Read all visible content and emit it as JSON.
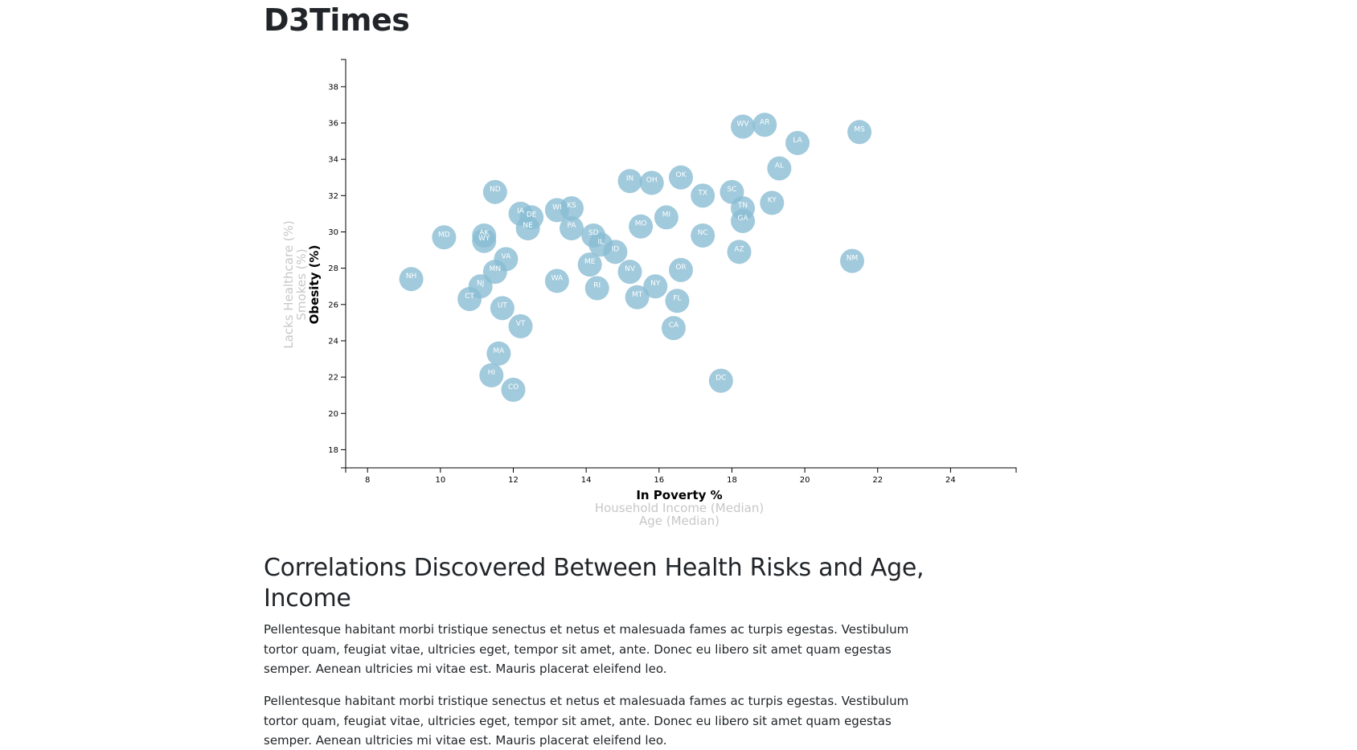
{
  "page": {
    "title": "D3Times"
  },
  "article": {
    "title": "Correlations Discovered Between Health Risks and Age, Income",
    "paragraphs": [
      "Pellentesque habitant morbi tristique senectus et netus et malesuada fames ac turpis egestas. Vestibulum tortor quam, feugiat vitae, ultricies eget, tempor sit amet, ante. Donec eu libero sit amet quam egestas semper. Aenean ultricies mi vitae est. Mauris placerat eleifend leo.",
      "Pellentesque habitant morbi tristique senectus et netus et malesuada fames ac turpis egestas. Vestibulum tortor quam, feugiat vitae, ultricies eget, tempor sit amet, ante. Donec eu libero sit amet quam egestas semper. Aenean ultricies mi vitae est. Mauris placerat eleifend leo."
    ]
  },
  "chart_data": {
    "type": "scatter",
    "x_axis_options": [
      {
        "label": "In Poverty %",
        "active": true
      },
      {
        "label": "Household Income (Median)",
        "active": false
      },
      {
        "label": "Age (Median)",
        "active": false
      }
    ],
    "y_axis_options": [
      {
        "label": "Obesity (%)",
        "active": true
      },
      {
        "label": "Smokes (%)",
        "active": false
      },
      {
        "label": "Lacks Healthcare (%)",
        "active": false
      }
    ],
    "xlim": [
      7.4,
      25.8
    ],
    "ylim": [
      17,
      39.5
    ],
    "x_ticks": [
      8,
      10,
      12,
      14,
      16,
      18,
      20,
      22,
      24
    ],
    "y_ticks": [
      18,
      20,
      22,
      24,
      26,
      28,
      30,
      32,
      34,
      36,
      38
    ],
    "marker_color": "#89bdd3",
    "label_color": "#ffffff",
    "points": [
      {
        "abbr": "NH",
        "x": 9.2,
        "y": 27.4
      },
      {
        "abbr": "MD",
        "x": 10.1,
        "y": 29.7
      },
      {
        "abbr": "CT",
        "x": 10.8,
        "y": 26.3
      },
      {
        "abbr": "NJ",
        "x": 11.1,
        "y": 27.0
      },
      {
        "abbr": "AK",
        "x": 11.2,
        "y": 29.8
      },
      {
        "abbr": "WY",
        "x": 11.2,
        "y": 29.5
      },
      {
        "abbr": "HI",
        "x": 11.4,
        "y": 22.1
      },
      {
        "abbr": "MN",
        "x": 11.5,
        "y": 27.8
      },
      {
        "abbr": "ND",
        "x": 11.5,
        "y": 32.2
      },
      {
        "abbr": "MA",
        "x": 11.6,
        "y": 23.3
      },
      {
        "abbr": "UT",
        "x": 11.7,
        "y": 25.8
      },
      {
        "abbr": "VA",
        "x": 11.8,
        "y": 28.5
      },
      {
        "abbr": "CO",
        "x": 12.0,
        "y": 21.3
      },
      {
        "abbr": "IA",
        "x": 12.2,
        "y": 31.0
      },
      {
        "abbr": "VT",
        "x": 12.2,
        "y": 24.8
      },
      {
        "abbr": "NE",
        "x": 12.4,
        "y": 30.2
      },
      {
        "abbr": "DE",
        "x": 12.5,
        "y": 30.8
      },
      {
        "abbr": "WA",
        "x": 13.2,
        "y": 27.3
      },
      {
        "abbr": "WI",
        "x": 13.2,
        "y": 31.2
      },
      {
        "abbr": "KS",
        "x": 13.6,
        "y": 31.3
      },
      {
        "abbr": "PA",
        "x": 13.6,
        "y": 30.2
      },
      {
        "abbr": "ME",
        "x": 14.1,
        "y": 28.2
      },
      {
        "abbr": "SD",
        "x": 14.2,
        "y": 29.8
      },
      {
        "abbr": "IL",
        "x": 14.4,
        "y": 29.3
      },
      {
        "abbr": "RI",
        "x": 14.3,
        "y": 26.9
      },
      {
        "abbr": "ID",
        "x": 14.8,
        "y": 28.9
      },
      {
        "abbr": "NV",
        "x": 15.2,
        "y": 27.8
      },
      {
        "abbr": "IN",
        "x": 15.2,
        "y": 32.8
      },
      {
        "abbr": "MT",
        "x": 15.4,
        "y": 26.4
      },
      {
        "abbr": "MO",
        "x": 15.5,
        "y": 30.3
      },
      {
        "abbr": "OH",
        "x": 15.8,
        "y": 32.7
      },
      {
        "abbr": "NY",
        "x": 15.9,
        "y": 27.0
      },
      {
        "abbr": "MI",
        "x": 16.2,
        "y": 30.8
      },
      {
        "abbr": "CA",
        "x": 16.4,
        "y": 24.7
      },
      {
        "abbr": "FL",
        "x": 16.5,
        "y": 26.2
      },
      {
        "abbr": "OK",
        "x": 16.6,
        "y": 33.0
      },
      {
        "abbr": "OR",
        "x": 16.6,
        "y": 27.9
      },
      {
        "abbr": "NC",
        "x": 17.2,
        "y": 29.8
      },
      {
        "abbr": "TX",
        "x": 17.2,
        "y": 32.0
      },
      {
        "abbr": "DC",
        "x": 17.7,
        "y": 21.8
      },
      {
        "abbr": "SC",
        "x": 18.0,
        "y": 32.2
      },
      {
        "abbr": "AZ",
        "x": 18.2,
        "y": 28.9
      },
      {
        "abbr": "TN",
        "x": 18.3,
        "y": 31.3
      },
      {
        "abbr": "GA",
        "x": 18.3,
        "y": 30.6
      },
      {
        "abbr": "WV",
        "x": 18.3,
        "y": 35.8
      },
      {
        "abbr": "AR",
        "x": 18.9,
        "y": 35.9
      },
      {
        "abbr": "KY",
        "x": 19.1,
        "y": 31.6
      },
      {
        "abbr": "AL",
        "x": 19.3,
        "y": 33.5
      },
      {
        "abbr": "LA",
        "x": 19.8,
        "y": 34.9
      },
      {
        "abbr": "NM",
        "x": 21.3,
        "y": 28.4
      },
      {
        "abbr": "MS",
        "x": 21.5,
        "y": 35.5
      }
    ]
  }
}
